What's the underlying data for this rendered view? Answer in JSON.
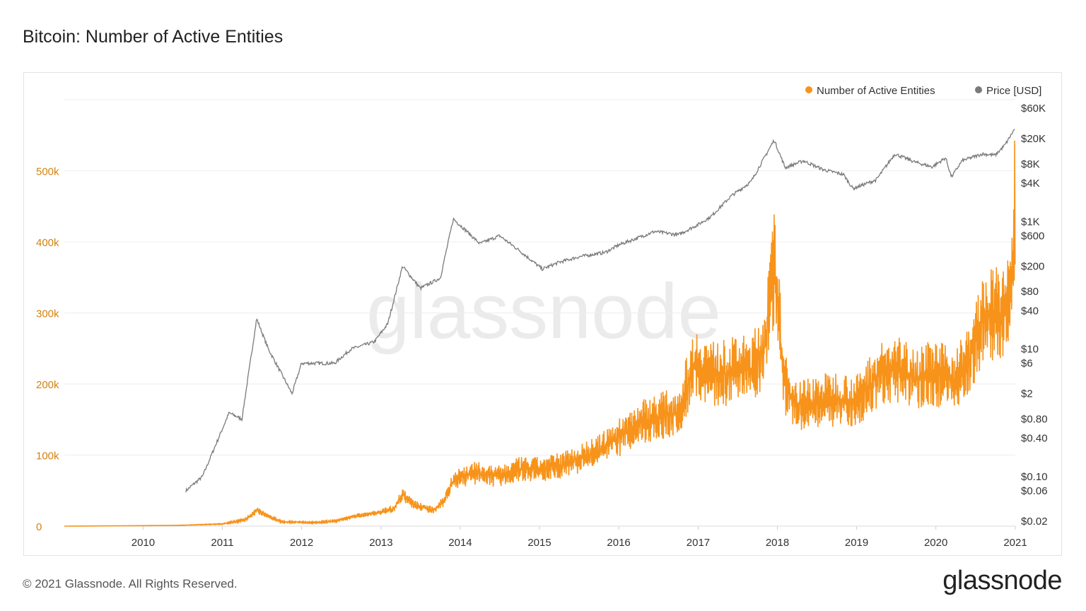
{
  "page": {
    "title": "Bitcoin: Number of Active Entities",
    "copyright": "© 2021 Glassnode. All Rights Reserved.",
    "logo_text": "glassnode",
    "watermark": "glassnode"
  },
  "colors": {
    "entities": "#f7931a",
    "price": "#7a7a7a",
    "left_axis_text": "#d4820f",
    "axis_text": "#333333",
    "grid": "#eeeeee"
  },
  "chart_data": {
    "type": "line",
    "title": "Bitcoin: Number of Active Entities",
    "legend": {
      "placement": "top-right",
      "entries": [
        "Number of Active Entities",
        "Price [USD]"
      ]
    },
    "grid": true,
    "x_ticks": [
      "2010",
      "2011",
      "2012",
      "2013",
      "2014",
      "2015",
      "2016",
      "2017",
      "2018",
      "2019",
      "2020",
      "2021"
    ],
    "xlim": [
      "2009-01-03",
      "2021-01-01"
    ],
    "left_axis": {
      "ticks": [
        "0",
        "100k",
        "200k",
        "300k",
        "400k",
        "500k"
      ],
      "tick_values": [
        0,
        100000,
        200000,
        300000,
        400000,
        500000
      ],
      "ylim": [
        0,
        600000
      ]
    },
    "right_axis": {
      "scale": "log",
      "ticks": [
        "$60K",
        "$20K",
        "$8K",
        "$4K",
        "$1K",
        "$600",
        "$200",
        "$80",
        "$40",
        "$10",
        "$6",
        "$2",
        "$0.80",
        "$0.40",
        "$0.10",
        "$0.06",
        "$0.02"
      ],
      "tick_values": [
        60000,
        20000,
        8000,
        4000,
        1000,
        600,
        200,
        80,
        40,
        10,
        6,
        2,
        0.8,
        0.4,
        0.1,
        0.06,
        0.02
      ]
    },
    "series": [
      {
        "name": "Number of Active Entities",
        "axis": "left",
        "x": [
          "2009-01-03",
          "2010-06-01",
          "2011-01-01",
          "2011-04-15",
          "2011-06-10",
          "2011-08-01",
          "2011-10-01",
          "2012-03-01",
          "2012-06-01",
          "2012-09-01",
          "2013-01-01",
          "2013-03-01",
          "2013-04-10",
          "2013-06-01",
          "2013-09-01",
          "2013-10-15",
          "2013-12-01",
          "2014-03-01",
          "2014-07-01",
          "2014-10-01",
          "2015-01-01",
          "2015-04-01",
          "2015-07-01",
          "2015-10-01",
          "2016-01-01",
          "2016-04-01",
          "2016-07-01",
          "2016-10-01",
          "2016-12-15",
          "2017-03-01",
          "2017-05-01",
          "2017-07-01",
          "2017-09-01",
          "2017-11-01",
          "2017-12-20",
          "2018-02-01",
          "2018-04-01",
          "2018-07-01",
          "2018-10-01",
          "2019-01-01",
          "2019-04-01",
          "2019-07-01",
          "2019-10-01",
          "2020-01-01",
          "2020-03-15",
          "2020-06-01",
          "2020-08-01",
          "2020-10-01",
          "2020-11-15",
          "2020-12-15",
          "2020-12-31"
        ],
        "y": [
          0,
          1000,
          3000,
          9000,
          22000,
          14000,
          6000,
          5000,
          7000,
          14000,
          20000,
          25000,
          45000,
          30000,
          22000,
          35000,
          65000,
          75000,
          70000,
          80000,
          80000,
          85000,
          95000,
          105000,
          125000,
          145000,
          155000,
          160000,
          230000,
          215000,
          215000,
          220000,
          220000,
          250000,
          370000,
          200000,
          170000,
          175000,
          180000,
          175000,
          210000,
          220000,
          210000,
          215000,
          205000,
          230000,
          290000,
          300000,
          295000,
          340000,
          460000
        ]
      },
      {
        "name": "Price [USD]",
        "axis": "right",
        "x": [
          "2010-07-17",
          "2010-10-01",
          "2011-02-01",
          "2011-04-01",
          "2011-06-08",
          "2011-08-01",
          "2011-11-18",
          "2012-01-01",
          "2012-06-01",
          "2012-08-15",
          "2012-12-01",
          "2013-02-01",
          "2013-04-10",
          "2013-07-01",
          "2013-10-01",
          "2013-11-30",
          "2014-02-01",
          "2014-04-01",
          "2014-07-01",
          "2014-10-01",
          "2015-01-14",
          "2015-04-01",
          "2015-07-01",
          "2015-11-01",
          "2016-01-01",
          "2016-06-15",
          "2016-10-01",
          "2017-01-01",
          "2017-03-01",
          "2017-06-01",
          "2017-09-01",
          "2017-12-17",
          "2018-02-06",
          "2018-05-01",
          "2018-08-01",
          "2018-11-01",
          "2018-12-15",
          "2019-04-01",
          "2019-06-26",
          "2019-10-01",
          "2019-12-15",
          "2020-02-15",
          "2020-03-13",
          "2020-05-01",
          "2020-08-01",
          "2020-10-01",
          "2020-11-15",
          "2020-12-31"
        ],
        "y": [
          0.06,
          0.1,
          1,
          0.8,
          30,
          10,
          2,
          6,
          6,
          10,
          13,
          25,
          200,
          90,
          130,
          1100,
          700,
          450,
          600,
          350,
          180,
          230,
          280,
          330,
          430,
          700,
          620,
          900,
          1200,
          2500,
          4200,
          19000,
          7000,
          9000,
          6500,
          5500,
          3300,
          4500,
          11500,
          8500,
          7200,
          10000,
          5000,
          9000,
          11500,
          11000,
          16000,
          29000
        ]
      }
    ]
  }
}
